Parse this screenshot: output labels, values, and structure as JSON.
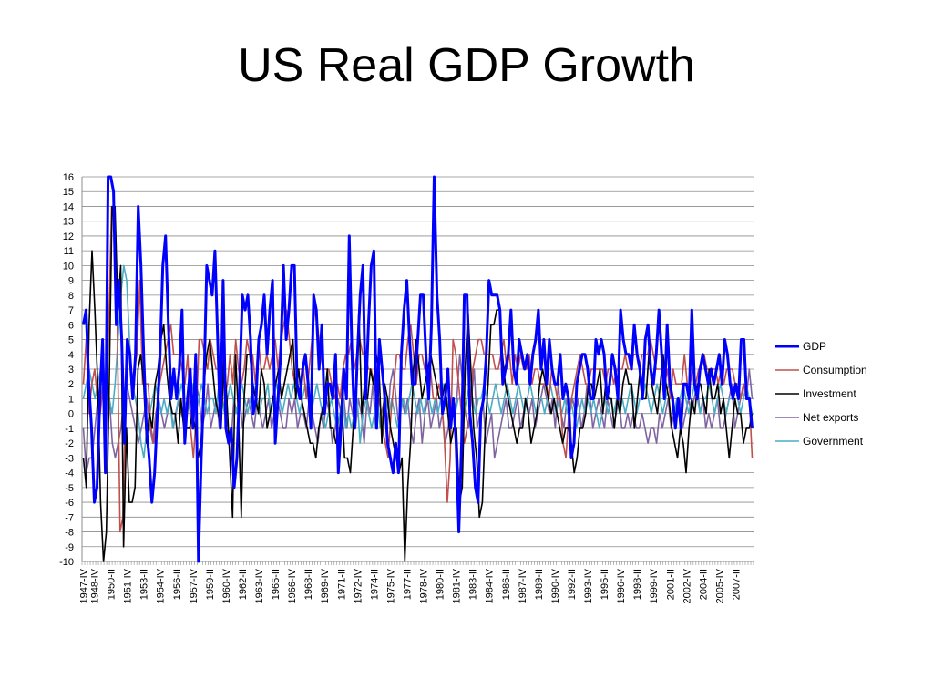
{
  "slide": {
    "title": "US Real GDP Growth"
  },
  "chart_data": {
    "type": "line",
    "title": "US Real GDP Growth",
    "xlabel": "",
    "ylabel": "",
    "ylim": [
      -10,
      16
    ],
    "yticks": [
      16,
      15,
      14,
      13,
      12,
      11,
      10,
      9,
      8,
      7,
      6,
      5,
      4,
      3,
      2,
      1,
      0,
      -1,
      -2,
      -3,
      -4,
      -5,
      -6,
      -7,
      -8,
      -9,
      -10
    ],
    "grid": true,
    "legend_position": "right",
    "x_start_quarter": "1947-IV",
    "x_end_quarter": "2008-IV",
    "x_tick_labels": [
      "1947-IV",
      "1948-IV",
      "1950-II",
      "1951-IV",
      "1953-II",
      "1954-IV",
      "1956-II",
      "1957-IV",
      "1959-II",
      "1960-IV",
      "1962-II",
      "1963-IV",
      "1965-II",
      "1966-IV",
      "1968-II",
      "1969-IV",
      "1971-II",
      "1972-IV",
      "1974-II",
      "1975-IV",
      "1977-II",
      "1978-IV",
      "1980-II",
      "1981-IV",
      "1983-II",
      "1984-IV",
      "1986-II",
      "1987-IV",
      "1989-II",
      "1990-IV",
      "1992-II",
      "1993-IV",
      "1995-II",
      "1996-IV",
      "1998-II",
      "1999-IV",
      "2001-II",
      "2002-IV",
      "2004-II",
      "2005-IV",
      "2007-II"
    ],
    "series": [
      {
        "name": "GDP",
        "color": "#0000ff",
        "width": 3,
        "values": [
          6,
          7,
          2,
          -1,
          -6,
          -5,
          1,
          5,
          -4,
          16,
          16,
          15,
          6,
          9,
          5,
          -2,
          5,
          4,
          1,
          4,
          14,
          10,
          4,
          -1,
          -3,
          -6,
          -4,
          0,
          4,
          10,
          12,
          6,
          1,
          3,
          1,
          3,
          7,
          -2,
          1,
          3,
          -1,
          4,
          -10,
          -3,
          2,
          10,
          9,
          8,
          11,
          5,
          -1,
          9,
          -1,
          -2,
          -1,
          -5,
          -3,
          2,
          8,
          7,
          8,
          5,
          0,
          1,
          5,
          6,
          8,
          4,
          7,
          9,
          -2,
          1,
          4,
          10,
          5,
          7,
          10,
          10,
          2,
          1,
          3,
          4,
          2,
          -1,
          8,
          7,
          3,
          6,
          0,
          2,
          2,
          1,
          4,
          -4,
          -1,
          3,
          1,
          12,
          4,
          -1,
          4,
          8,
          10,
          1,
          6,
          10,
          11,
          -1,
          5,
          3,
          1,
          -2,
          -3,
          -4,
          -2,
          -4,
          4,
          7,
          9,
          5,
          2,
          2,
          5,
          8,
          8,
          4,
          1,
          6,
          16,
          8,
          5,
          0,
          1,
          3,
          -1,
          1,
          -2,
          -8,
          -2,
          8,
          8,
          0,
          -2,
          -5,
          -6,
          0,
          1,
          4,
          9,
          8,
          8,
          8,
          7,
          2,
          3,
          4,
          7,
          3,
          2,
          5,
          4,
          3,
          4,
          2,
          4,
          5,
          7,
          3,
          5,
          2,
          5,
          3,
          2,
          2,
          4,
          1,
          2,
          1,
          -3,
          -2,
          2,
          3,
          4,
          4,
          3,
          1,
          1,
          5,
          4,
          5,
          4,
          1,
          2,
          4,
          3,
          1,
          7,
          5,
          4,
          4,
          3,
          6,
          4,
          3,
          1,
          5,
          6,
          3,
          2,
          4,
          7,
          4,
          1,
          6,
          2,
          1,
          -1,
          1,
          -1,
          2,
          2,
          1,
          7,
          2,
          1,
          3,
          4,
          3,
          2,
          3,
          2,
          3,
          4,
          2,
          5,
          4,
          2,
          1,
          2,
          1,
          5,
          5,
          1,
          1,
          -1
        ],
        "data_name": "series-gdp"
      },
      {
        "name": "Consumption",
        "color": "#c0504d",
        "width": 1.6,
        "values": [
          2,
          5,
          0,
          2,
          3,
          1,
          0,
          2,
          0,
          6,
          14,
          13,
          6,
          -8,
          -7,
          1,
          5,
          2,
          3,
          4,
          9,
          2,
          2,
          2,
          -1,
          -2,
          0,
          2,
          3,
          4,
          5,
          6,
          4,
          4,
          4,
          3,
          2,
          4,
          -1,
          -3,
          0,
          5,
          5,
          4,
          3,
          5,
          4,
          3,
          3,
          5,
          1,
          2,
          4,
          2,
          5,
          3,
          2,
          3,
          5,
          4,
          4,
          2,
          5,
          3,
          3,
          4,
          3,
          4,
          5,
          3,
          5,
          6,
          7,
          5,
          3,
          2,
          3,
          3,
          3,
          1,
          3,
          5,
          7,
          6,
          4,
          3,
          3,
          3,
          2,
          1,
          2,
          1,
          3,
          4,
          4,
          5,
          3,
          4,
          5,
          4,
          4,
          3,
          3,
          2,
          1,
          1,
          -1,
          -2,
          -3,
          0,
          2,
          4,
          4,
          3,
          3,
          5,
          6,
          4,
          2,
          4,
          4,
          3,
          3,
          3,
          1,
          1,
          2,
          1,
          -2,
          -6,
          -3,
          5,
          4,
          2,
          0,
          -2,
          -1,
          0,
          3,
          4,
          5,
          5,
          4,
          4,
          4,
          4,
          3,
          3,
          4,
          5,
          3,
          4,
          2,
          4,
          3,
          4,
          3,
          3,
          4,
          2,
          3,
          3,
          2,
          2,
          2,
          1,
          3,
          2,
          1,
          1,
          -2,
          -3,
          0,
          1,
          2,
          3,
          4,
          3,
          2,
          2,
          3,
          3,
          3,
          3,
          3,
          2,
          3,
          3,
          2,
          3,
          3,
          3,
          4,
          3,
          3,
          4,
          4,
          3,
          4,
          4,
          4,
          5,
          4,
          3,
          3,
          3,
          2,
          3,
          1,
          3,
          2,
          2,
          2,
          4,
          2,
          2,
          3,
          2,
          3,
          3,
          4,
          3,
          3,
          3,
          3,
          2,
          3,
          2,
          3,
          3,
          3,
          2,
          2,
          1,
          2,
          1,
          1,
          -3
        ],
        "data_name": "series-consumption"
      },
      {
        "name": "Investment",
        "color": "#000000",
        "width": 1.6,
        "values": [
          -3,
          -5,
          6,
          11,
          7,
          2,
          -6,
          -10,
          -8,
          2,
          14,
          14,
          7,
          10,
          -9,
          -1,
          -6,
          -6,
          -5,
          3,
          4,
          2,
          -2,
          0,
          -1,
          2,
          3,
          5,
          6,
          3,
          1,
          0,
          0,
          -2,
          1,
          -1,
          -1,
          -1,
          0,
          -1,
          -3,
          -2,
          2,
          4,
          5,
          3,
          1,
          0,
          -1,
          4,
          1,
          -3,
          -7,
          4,
          0,
          -7,
          1,
          4,
          4,
          2,
          1,
          0,
          3,
          2,
          -1,
          0,
          1,
          2,
          3,
          1,
          2,
          3,
          4,
          5,
          1,
          3,
          1,
          0,
          -1,
          -2,
          -2,
          -3,
          -1,
          0,
          1,
          3,
          -1,
          -1,
          -2,
          -2,
          1,
          -3,
          -3,
          -4,
          -1,
          2,
          7,
          0,
          2,
          1,
          3,
          2,
          4,
          3,
          -2,
          2,
          1,
          -1,
          -2,
          -3,
          -4,
          -3,
          -10,
          -5,
          -2,
          3,
          5,
          3,
          1,
          2,
          3,
          4,
          3,
          2,
          1,
          1,
          2,
          0,
          -2,
          -1,
          -1,
          -6,
          -5,
          3,
          7,
          3,
          -1,
          -3,
          -7,
          -6,
          -1,
          2,
          6,
          6,
          7,
          7,
          4,
          2,
          1,
          0,
          -1,
          -2,
          -1,
          -1,
          1,
          0,
          -2,
          -1,
          0,
          2,
          3,
          2,
          1,
          0,
          1,
          0,
          -1,
          -2,
          -1,
          -1,
          -2,
          -4,
          -3,
          -1,
          -1,
          0,
          2,
          2,
          1,
          2,
          3,
          0,
          2,
          1,
          1,
          -1,
          1,
          0,
          2,
          3,
          2,
          2,
          -1,
          1,
          3,
          1,
          1,
          4,
          2,
          1,
          0,
          2,
          4,
          2,
          1,
          -1,
          -2,
          -3,
          -1,
          -2,
          -4,
          -1,
          1,
          0,
          2,
          2,
          1,
          0,
          3,
          1,
          1,
          2,
          0,
          1,
          -1,
          -3,
          -1,
          1,
          0,
          0,
          -2,
          -1,
          -1,
          0
        ],
        "data_name": "series-investment"
      },
      {
        "name": "Net exports",
        "color": "#8064a2",
        "width": 1.6,
        "values": [
          -1,
          -4,
          -3,
          -3,
          -1,
          1,
          2,
          3,
          2,
          1,
          -2,
          -3,
          -2,
          -1,
          1,
          2,
          1,
          0,
          -1,
          -2,
          -1,
          0,
          1,
          -1,
          -2,
          0,
          1,
          0,
          -1,
          0,
          1,
          -1,
          0,
          1,
          0,
          -1,
          1,
          0,
          -1,
          2,
          1,
          -1,
          0,
          2,
          -1,
          0,
          1,
          -1,
          1,
          0,
          -1,
          -2,
          1,
          0,
          1,
          -1,
          0,
          1,
          0,
          -1,
          1,
          0,
          -1,
          0,
          1,
          -1,
          0,
          1,
          0,
          -1,
          -1,
          1,
          0,
          1,
          -1,
          0,
          0,
          -1,
          1,
          0,
          -1,
          -2,
          0,
          -1,
          1,
          0,
          -2,
          -1,
          1,
          0,
          1,
          -1,
          1,
          0,
          -1,
          1,
          0,
          -2,
          1,
          0,
          2,
          -1,
          1,
          0,
          1,
          -1,
          2,
          3,
          1,
          -1,
          1,
          0,
          1,
          -1,
          -2,
          0,
          1,
          -2,
          0,
          1,
          -1,
          0,
          1,
          -1,
          0,
          -2,
          -1,
          1,
          0,
          1,
          4,
          2,
          0,
          -1,
          1,
          3,
          -1,
          0,
          1,
          -2,
          -1,
          0,
          -3,
          -2,
          -1,
          0,
          1,
          -1,
          -1,
          0,
          1,
          -1,
          0,
          1,
          0,
          1,
          -1,
          0,
          1,
          2,
          1,
          0,
          1,
          -1,
          2,
          0,
          -1,
          1,
          0,
          1,
          0,
          1,
          -1,
          0,
          2,
          1,
          -1,
          0,
          1,
          0,
          -1,
          1,
          0,
          -1,
          0,
          1,
          -1,
          -1,
          0,
          -1,
          0,
          -1,
          -1,
          0,
          -1,
          -2,
          -1,
          -1,
          -2,
          0,
          -1,
          0,
          1,
          -1,
          0,
          1,
          1,
          -1,
          0,
          1,
          0,
          1,
          2,
          0,
          1,
          -1,
          0,
          -1,
          0,
          1,
          -1,
          -1,
          0,
          1,
          2,
          -1,
          0,
          1,
          2,
          1,
          3,
          1
        ],
        "data_name": "series-net-exports"
      },
      {
        "name": "Government",
        "color": "#4bacc6",
        "width": 1.6,
        "values": [
          1,
          2,
          3,
          2,
          1,
          2,
          3,
          2,
          1,
          1,
          0,
          2,
          5,
          8,
          10,
          9,
          5,
          2,
          1,
          0,
          -2,
          -3,
          -1,
          0,
          1,
          2,
          1,
          0,
          1,
          0,
          1,
          -1,
          0,
          1,
          2,
          1,
          0,
          1,
          2,
          0,
          1,
          2,
          1,
          0,
          1,
          1,
          0,
          2,
          1,
          0,
          1,
          2,
          1,
          0,
          1,
          2,
          1,
          0,
          1,
          2,
          1,
          0,
          1,
          1,
          2,
          0,
          1,
          2,
          1,
          0,
          1,
          2,
          1,
          2,
          1,
          0,
          1,
          2,
          1,
          0,
          1,
          2,
          1,
          0,
          -1,
          0,
          1,
          0,
          -1,
          0,
          1,
          -1,
          0,
          -1,
          0,
          1,
          -2,
          0,
          1,
          0,
          -1,
          0,
          1,
          -1,
          0,
          1,
          0,
          1,
          0,
          -1,
          0,
          1,
          0,
          1,
          2,
          1,
          0,
          1,
          0,
          1,
          1,
          0,
          1,
          0,
          1,
          2,
          1,
          0,
          1,
          0,
          1,
          1,
          0,
          1,
          2,
          1,
          0,
          1,
          1,
          2,
          1,
          0,
          1,
          2,
          1,
          0,
          1,
          2,
          1,
          0,
          1,
          2,
          1,
          0,
          1,
          2,
          1,
          0,
          1,
          1,
          0,
          1,
          2,
          1,
          0,
          1,
          0,
          1,
          0,
          1,
          0,
          -1,
          0,
          1,
          0,
          1,
          0,
          1,
          0,
          -1,
          0,
          1,
          0,
          1,
          0,
          1,
          0,
          1,
          0,
          1,
          2,
          1,
          0,
          1,
          1,
          2,
          1,
          0,
          1,
          2,
          1,
          0,
          1,
          2,
          1,
          0,
          1,
          1,
          2,
          1,
          0,
          1,
          2,
          1,
          0,
          1,
          1,
          2,
          1,
          0,
          1,
          2,
          1,
          0,
          1,
          1,
          2,
          1,
          0,
          1,
          2,
          1,
          0
        ],
        "data_name": "series-government"
      }
    ]
  }
}
